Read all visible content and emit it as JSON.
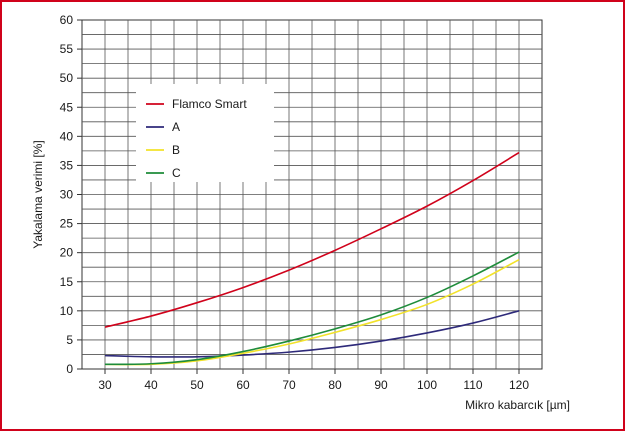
{
  "chart_data": {
    "type": "line",
    "title": "",
    "xlabel": "Mikro kabarcık [µm]",
    "ylabel": "Yakalama verimi [%]",
    "xlim": [
      25,
      125
    ],
    "ylim": [
      0,
      60
    ],
    "x_ticks": [
      30,
      40,
      50,
      60,
      70,
      80,
      90,
      100,
      110,
      120
    ],
    "y_ticks": [
      0,
      5,
      10,
      15,
      20,
      25,
      30,
      35,
      40,
      45,
      50,
      55,
      60
    ],
    "grid": true,
    "legend_position": "upper-left",
    "x": [
      30,
      40,
      50,
      60,
      70,
      80,
      90,
      100,
      110,
      120
    ],
    "series": [
      {
        "name": "Flamco Smart",
        "color": "#d0021b",
        "values": [
          7.2,
          9.1,
          11.4,
          14.0,
          17.0,
          20.4,
          24.1,
          28.0,
          32.4,
          37.2
        ]
      },
      {
        "name": "A",
        "color": "#2e2a7a",
        "values": [
          2.3,
          2.1,
          2.1,
          2.4,
          2.9,
          3.7,
          4.8,
          6.2,
          7.9,
          10.0
        ]
      },
      {
        "name": "B",
        "color": "#f2e22a",
        "values": [
          0.8,
          0.8,
          1.4,
          2.7,
          4.3,
          6.3,
          8.5,
          11.1,
          14.6,
          18.8
        ]
      },
      {
        "name": "C",
        "color": "#1e8c3a",
        "values": [
          0.8,
          0.9,
          1.6,
          3.0,
          4.8,
          6.9,
          9.3,
          12.3,
          16.0,
          20.1
        ]
      }
    ]
  }
}
